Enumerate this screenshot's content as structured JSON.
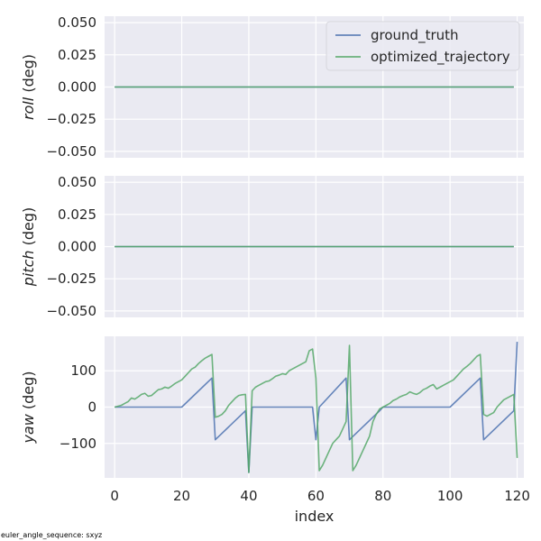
{
  "footer_note": "euler_angle_sequence: sxyz",
  "colors": {
    "plot_background": "#eaeaf2",
    "grid": "#ffffff",
    "ground_truth": "#4c72b0",
    "optimized_trajectory": "#55a868"
  },
  "chart_data": [
    {
      "type": "line",
      "ylabel_italic": "roll",
      "ylabel_rest": " (deg)",
      "xlim": [
        -3,
        122
      ],
      "ylim": [
        -0.055,
        0.055
      ],
      "yticks": [
        -0.05,
        -0.025,
        0.0,
        0.025,
        0.05
      ],
      "ytick_labels": [
        "−0.050",
        "−0.025",
        "0.000",
        "0.025",
        "0.050"
      ],
      "xticks": [
        0,
        20,
        40,
        60,
        80,
        100,
        120
      ],
      "show_xtick_labels": false,
      "grid": true,
      "legend": {
        "placement": "upper-right",
        "entries": [
          "ground_truth",
          "optimized_trajectory"
        ]
      },
      "series": [
        {
          "name": "ground_truth",
          "x": [
            0,
            119
          ],
          "values": [
            0,
            0
          ]
        },
        {
          "name": "optimized_trajectory",
          "x": [
            0,
            119
          ],
          "values": [
            0,
            0
          ]
        }
      ]
    },
    {
      "type": "line",
      "ylabel_italic": "pitch",
      "ylabel_rest": " (deg)",
      "xlim": [
        -3,
        122
      ],
      "ylim": [
        -0.055,
        0.055
      ],
      "yticks": [
        -0.05,
        -0.025,
        0.0,
        0.025,
        0.05
      ],
      "ytick_labels": [
        "−0.050",
        "−0.025",
        "0.000",
        "0.025",
        "0.050"
      ],
      "xticks": [
        0,
        20,
        40,
        60,
        80,
        100,
        120
      ],
      "show_xtick_labels": false,
      "grid": true,
      "series": [
        {
          "name": "ground_truth",
          "x": [
            0,
            119
          ],
          "values": [
            0,
            0
          ]
        },
        {
          "name": "optimized_trajectory",
          "x": [
            0,
            119
          ],
          "values": [
            0,
            0
          ]
        }
      ]
    },
    {
      "type": "line",
      "ylabel_italic": "yaw",
      "ylabel_rest": " (deg)",
      "xlabel": "index",
      "xlim": [
        -3,
        122
      ],
      "ylim": [
        -195,
        195
      ],
      "yticks": [
        -100,
        0,
        100
      ],
      "ytick_labels": [
        "−100",
        "0",
        "100"
      ],
      "xticks": [
        0,
        20,
        40,
        60,
        80,
        100,
        120
      ],
      "xtick_labels": [
        "0",
        "20",
        "40",
        "60",
        "80",
        "100",
        "120"
      ],
      "show_xtick_labels": true,
      "grid": true,
      "series": [
        {
          "name": "ground_truth",
          "x": [
            0,
            20,
            29,
            30,
            39,
            40,
            41,
            59,
            60,
            61,
            69,
            70,
            79,
            80,
            100,
            109,
            110,
            119,
            120
          ],
          "values": [
            0,
            0,
            80,
            -90,
            -10,
            -180,
            0,
            0,
            -90,
            0,
            80,
            -90,
            -10,
            0,
            0,
            80,
            -90,
            -10,
            180
          ]
        },
        {
          "name": "optimized_trajectory",
          "x": [
            0,
            2,
            3,
            4,
            5,
            6,
            7,
            8,
            9,
            10,
            11,
            12,
            13,
            14,
            15,
            16,
            17,
            18,
            19,
            20,
            21,
            22,
            23,
            24,
            25,
            26,
            27,
            28,
            29,
            30,
            31,
            32,
            33,
            34,
            35,
            36,
            37,
            38,
            39,
            40,
            41,
            42,
            43,
            44,
            45,
            46,
            47,
            48,
            49,
            50,
            51,
            52,
            53,
            54,
            55,
            56,
            57,
            58,
            59,
            60,
            61,
            62,
            63,
            64,
            65,
            66,
            67,
            68,
            69,
            70,
            71,
            72,
            73,
            74,
            75,
            76,
            77,
            78,
            79,
            80,
            81,
            82,
            83,
            84,
            85,
            86,
            87,
            88,
            89,
            90,
            91,
            92,
            93,
            94,
            95,
            96,
            97,
            98,
            99,
            100,
            101,
            102,
            103,
            104,
            105,
            106,
            107,
            108,
            109,
            110,
            111,
            112,
            113,
            114,
            115,
            116,
            117,
            118,
            119,
            120
          ],
          "values": [
            0,
            5,
            10,
            15,
            25,
            22,
            28,
            35,
            38,
            30,
            32,
            40,
            48,
            50,
            55,
            52,
            58,
            65,
            70,
            75,
            85,
            95,
            105,
            110,
            120,
            128,
            135,
            140,
            145,
            -28,
            -25,
            -20,
            -10,
            5,
            15,
            25,
            32,
            34,
            35,
            -180,
            45,
            55,
            60,
            65,
            70,
            72,
            78,
            85,
            88,
            92,
            90,
            100,
            105,
            110,
            115,
            120,
            125,
            155,
            160,
            80,
            -175,
            -160,
            -140,
            -120,
            -100,
            -90,
            -80,
            -60,
            -40,
            170,
            -175,
            -160,
            -140,
            -120,
            -100,
            -80,
            -40,
            -20,
            -5,
            0,
            5,
            10,
            18,
            22,
            28,
            32,
            35,
            42,
            38,
            35,
            40,
            48,
            52,
            58,
            62,
            50,
            55,
            60,
            65,
            70,
            75,
            85,
            95,
            105,
            112,
            120,
            130,
            140,
            145,
            -20,
            -25,
            -20,
            -15,
            0,
            10,
            20,
            25,
            30,
            35,
            -140
          ]
        }
      ]
    }
  ]
}
